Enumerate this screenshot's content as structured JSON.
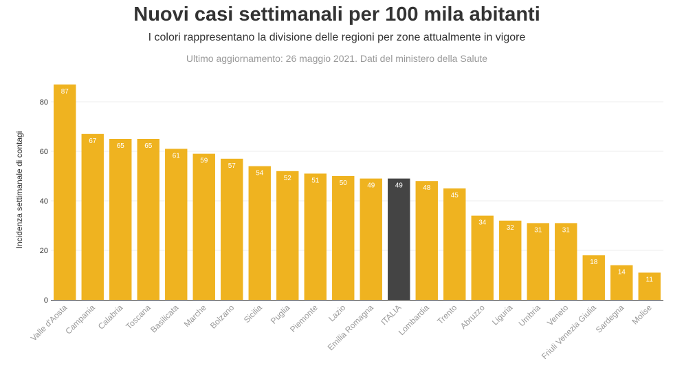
{
  "chart_data": {
    "type": "bar",
    "title": "Nuovi casi settimanali per 100 mila abitanti",
    "subtitle": "I colori rappresentano la divisione delle regioni per zone attualmente in vigore",
    "note": "Ultimo aggiornamento: 26 maggio 2021. Dati del ministero della Salute",
    "xlabel": "",
    "ylabel": "Incidenza settimanale di contagi",
    "ylim": [
      0,
      90
    ],
    "yticks": [
      0,
      20,
      40,
      60,
      80
    ],
    "grid": true,
    "categories": [
      "Valle d'Aosta",
      "Campania",
      "Calabria",
      "Toscana",
      "Basilicata",
      "Marche",
      "Bolzano",
      "Sicilia",
      "Puglia",
      "Piemonte",
      "Lazio",
      "Emilia Romagna",
      "ITALIA",
      "Lombardia",
      "Trento",
      "Abruzzo",
      "Liguria",
      "Umbria",
      "Veneto",
      "Friuli Venezia Giulia",
      "Sardegna",
      "Molise"
    ],
    "values": [
      87,
      67,
      65,
      65,
      61,
      59,
      57,
      54,
      52,
      51,
      50,
      49,
      49,
      48,
      45,
      34,
      32,
      31,
      31,
      18,
      14,
      11
    ],
    "highlight_category": "ITALIA",
    "colors": {
      "bar": "#efb320",
      "highlight": "#444444",
      "grid": "#ececec",
      "axis": "#333333"
    }
  }
}
